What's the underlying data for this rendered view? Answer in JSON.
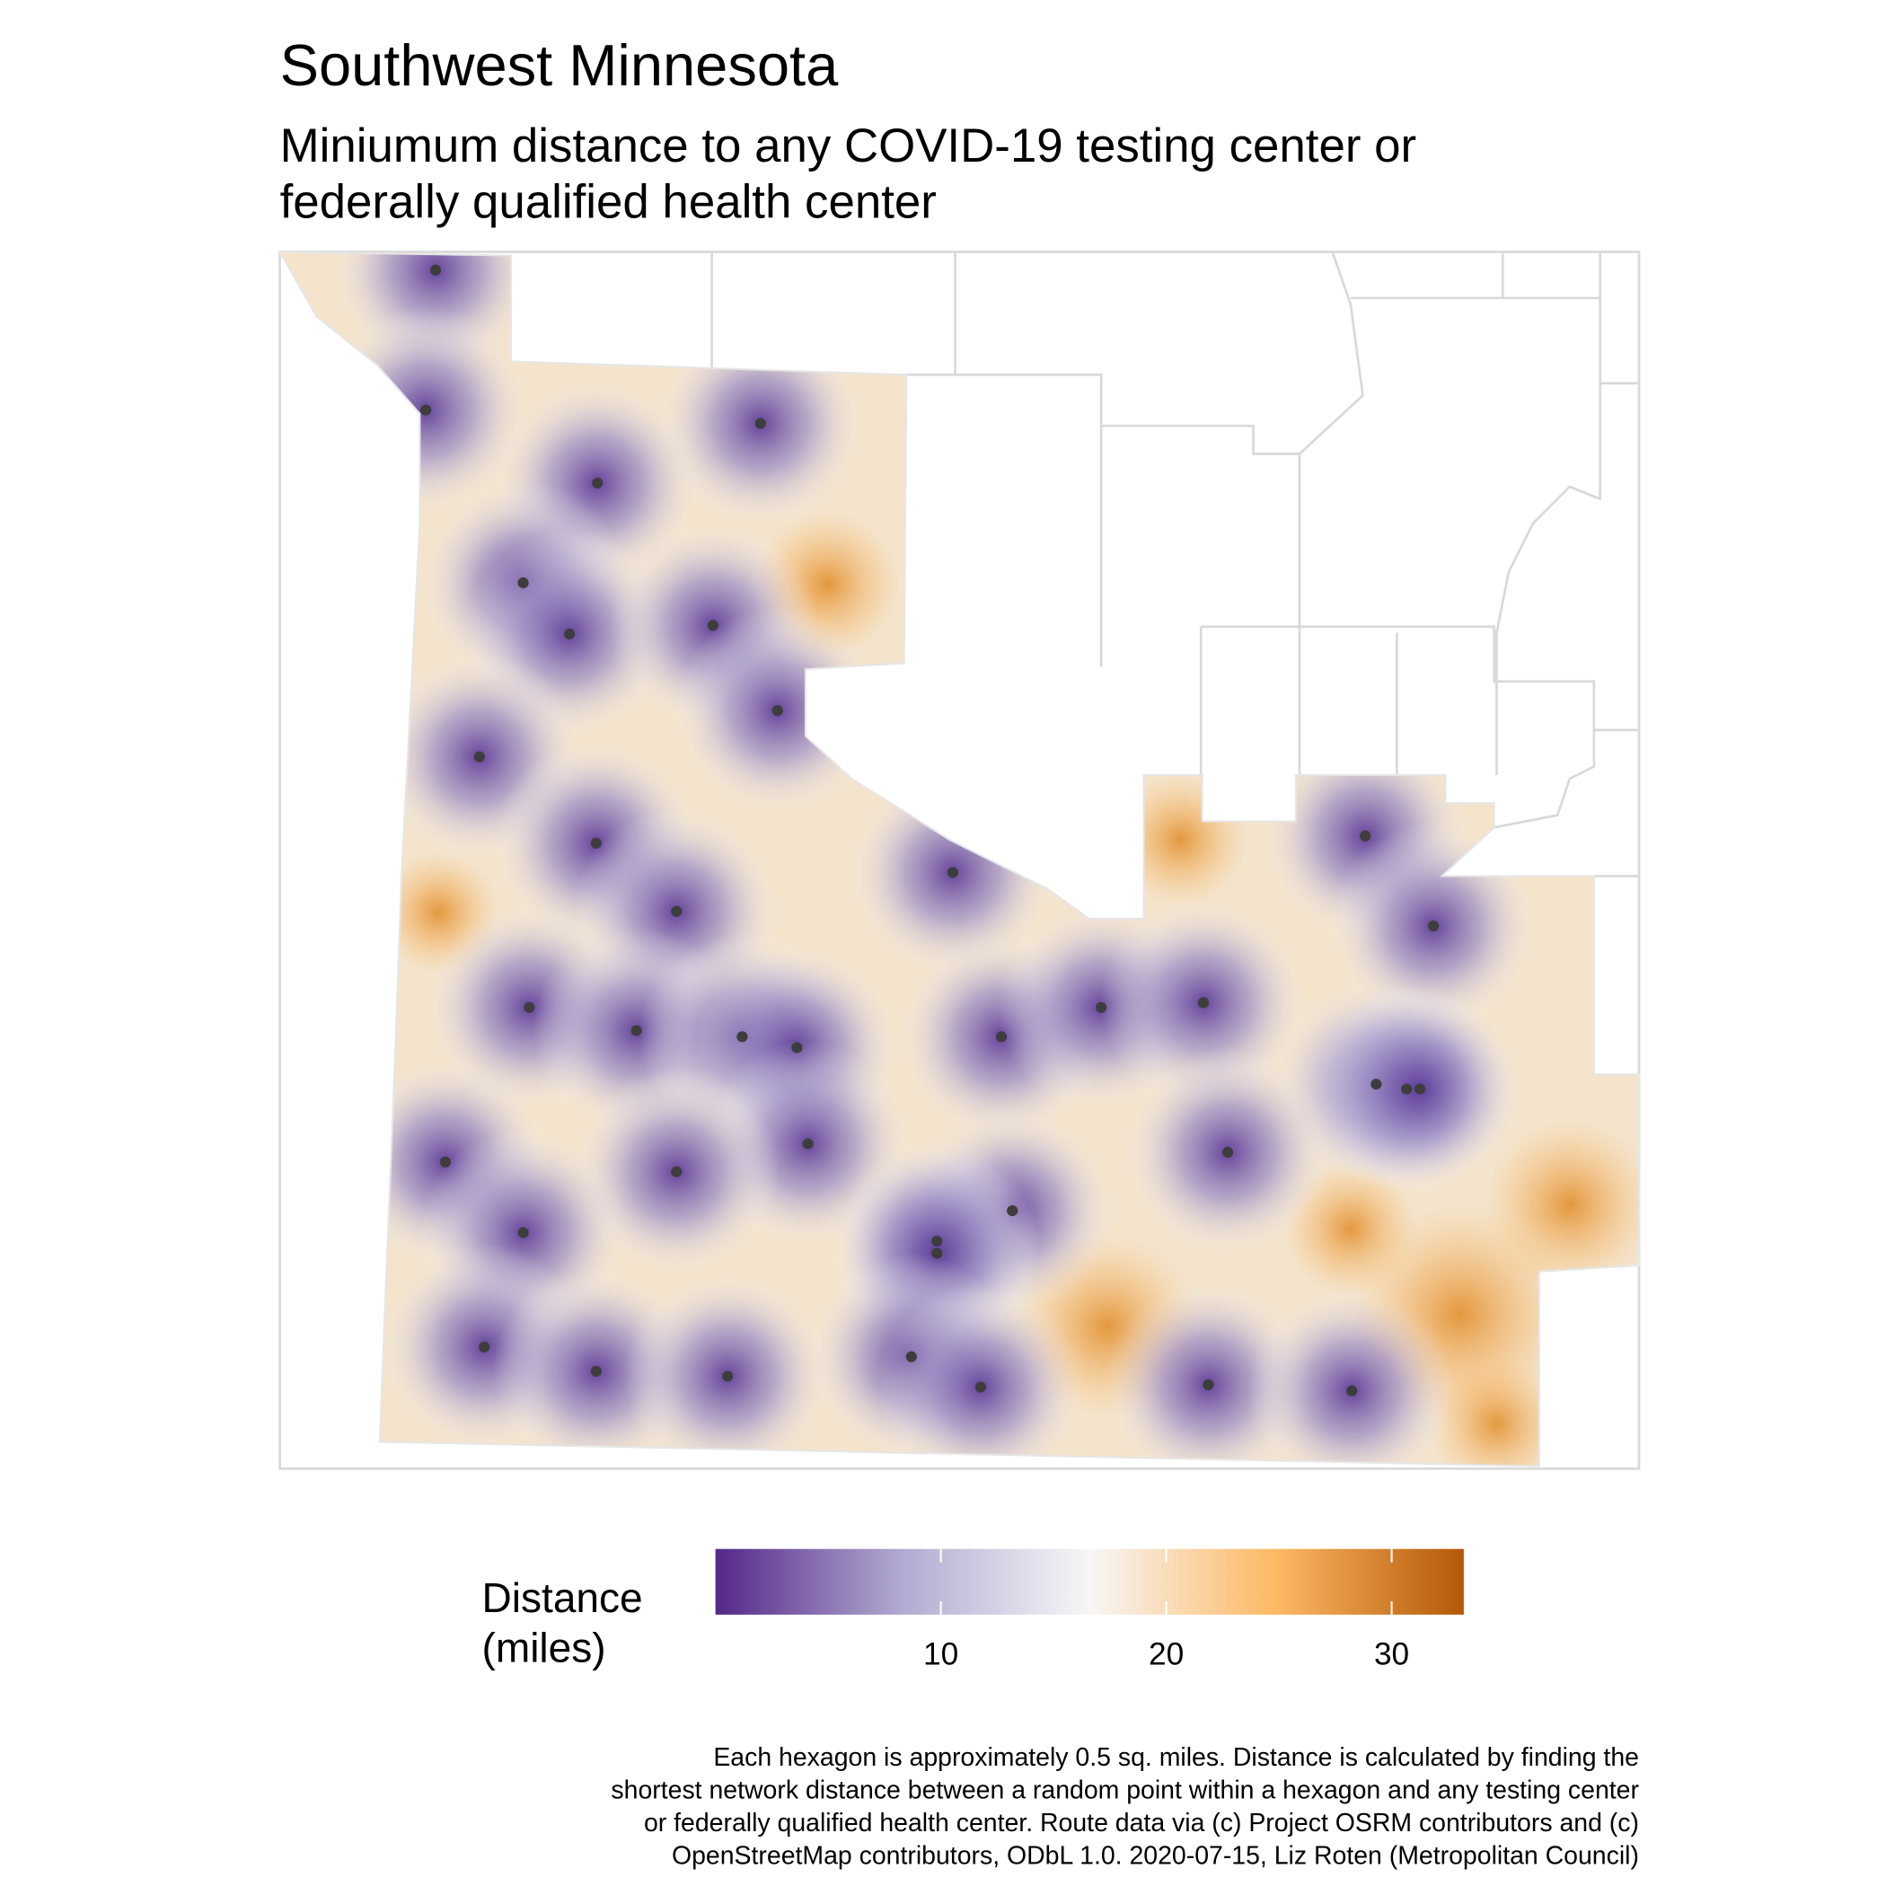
{
  "title": "Southwest Minnesota",
  "subtitle": [
    "Miniumum distance to any COVID-19 testing center or",
    "federally qualified health center"
  ],
  "legend": {
    "title": [
      "Distance",
      "(miles)"
    ],
    "lim": [
      0,
      33.2
    ],
    "ticks": [
      10,
      20,
      30
    ],
    "colors": [
      "#542788",
      "#b2abd2",
      "#f7f7f7",
      "#fdb863",
      "#b35806"
    ]
  },
  "caption": [
    "Each hexagon is approximately 0.5 sq. miles. Distance is calculated by finding the",
    "shortest network distance between a random point within a hexagon and any testing center",
    "or federally qualified health center. Route data via (c) Project OSRM contributors and (c)",
    "OpenStreetMap contributors, ODbL 1.0. 2020-07-15, Liz Roten (Metropolitan Council)"
  ]
}
